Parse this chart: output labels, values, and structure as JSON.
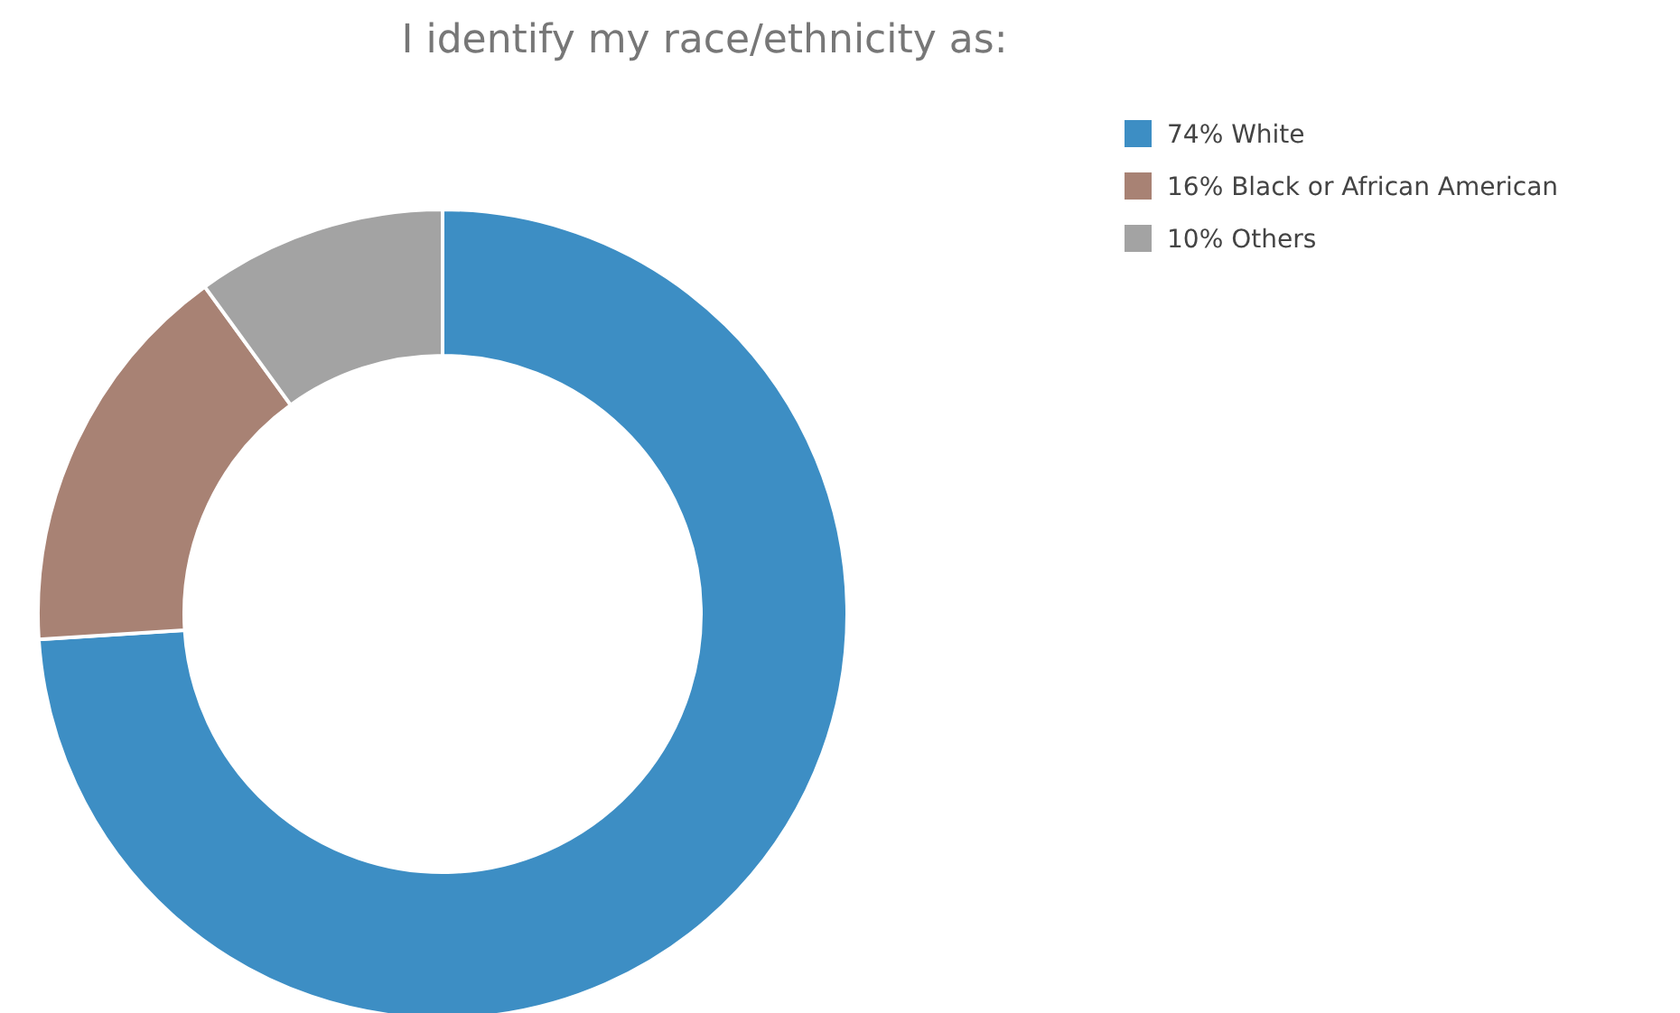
{
  "chart_data": {
    "type": "donut",
    "title": "I identify my race/ethnicity as:",
    "categories": [
      "White",
      "Black or African American",
      "Others"
    ],
    "values": [
      74,
      16,
      10
    ],
    "value_labels": [
      "74%",
      "16%",
      "10%"
    ],
    "colors": [
      "#3d8ec4",
      "#a88274",
      "#a3a3a3"
    ],
    "legend": "top right"
  }
}
